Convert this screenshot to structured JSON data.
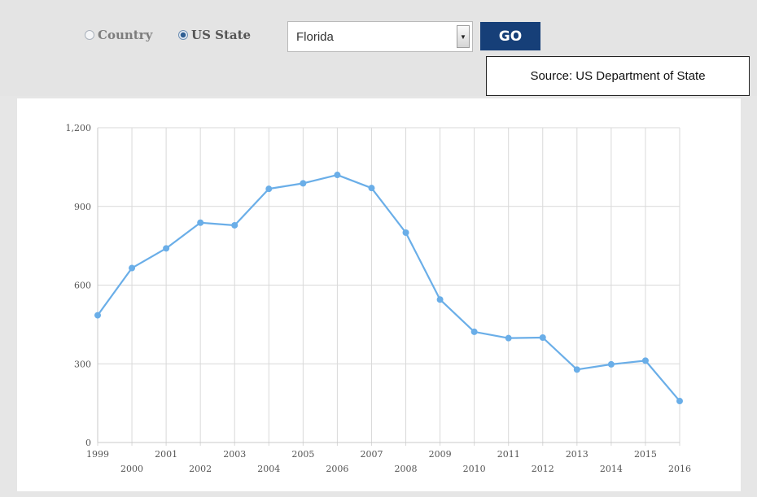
{
  "controls": {
    "country_label": "Country",
    "us_state_label": "US State",
    "selected_mode": "US State",
    "state_select_value": "Florida",
    "go_label": "GO"
  },
  "source_note": "Source: US Department of State",
  "colors": {
    "line": "#6aaee8",
    "go_button": "#163f78",
    "grid": "#d9d9d9"
  },
  "icons": {
    "select_arrow": "chevron-down-icon"
  },
  "chart_data": {
    "type": "line",
    "title": "",
    "xlabel": "",
    "ylabel": "",
    "x": [
      "1999",
      "2000",
      "2001",
      "2002",
      "2003",
      "2004",
      "2005",
      "2006",
      "2007",
      "2008",
      "2009",
      "2010",
      "2011",
      "2012",
      "2013",
      "2014",
      "2015",
      "2016"
    ],
    "series": [
      {
        "values": [
          485,
          665,
          740,
          838,
          828,
          967,
          988,
          1020,
          970,
          800,
          545,
          422,
          398,
          400,
          278,
          298,
          312,
          158
        ]
      }
    ],
    "ylim": [
      0,
      1200
    ],
    "yticks": [
      "0",
      "300",
      "600",
      "900",
      "1,200"
    ],
    "ytick_values": [
      0,
      300,
      600,
      900,
      1200
    ],
    "grid": true,
    "legend": "none"
  }
}
